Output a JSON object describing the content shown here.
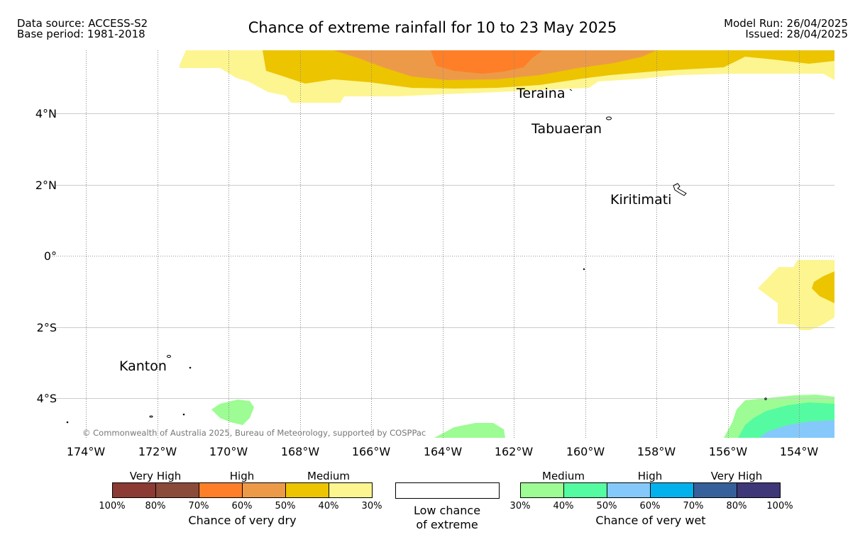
{
  "header": {
    "source_line": "Data source: ACCESS-S2",
    "base_line": "Base period: 1981-2018",
    "title": "Chance of extreme rainfall for 10 to 23 May 2025",
    "model_run": "Model Run: 26/04/2025",
    "issued": "Issued: 28/04/2025"
  },
  "map": {
    "lat_ticks": [
      "4°N",
      "2°N",
      "0°",
      "2°S",
      "4°S"
    ],
    "lon_ticks": [
      "174°W",
      "172°W",
      "170°W",
      "168°W",
      "166°W",
      "164°W",
      "162°W",
      "160°W",
      "158°W",
      "156°W",
      "154°W"
    ],
    "places": [
      "Teraina",
      "Tabuaeran",
      "Kiritimati",
      "Kanton"
    ],
    "copyright": "© Commonwealth of Australia 2025, Bureau of Meteorology, supported by COSPPac"
  },
  "legend": {
    "dry": {
      "groups": [
        "Very High",
        "High",
        "Medium"
      ],
      "colors": [
        "#8b3a34",
        "#8b4b3a",
        "#fe7f27",
        "#ed9a48",
        "#ecc400",
        "#fdf58f"
      ],
      "ticks": [
        "100%",
        "80%",
        "70%",
        "60%",
        "50%",
        "40%",
        "30%"
      ],
      "caption": "Chance of very dry"
    },
    "neutral": {
      "caption_line1": "Low chance",
      "caption_line2": "of extreme"
    },
    "wet": {
      "groups": [
        "Medium",
        "High",
        "Very High"
      ],
      "colors": [
        "#9dfc93",
        "#55fba1",
        "#85c9fa",
        "#03b1ec",
        "#36609a",
        "#3e3878"
      ],
      "ticks": [
        "30%",
        "40%",
        "50%",
        "60%",
        "70%",
        "80%",
        "100%"
      ],
      "caption": "Chance of very wet"
    }
  }
}
